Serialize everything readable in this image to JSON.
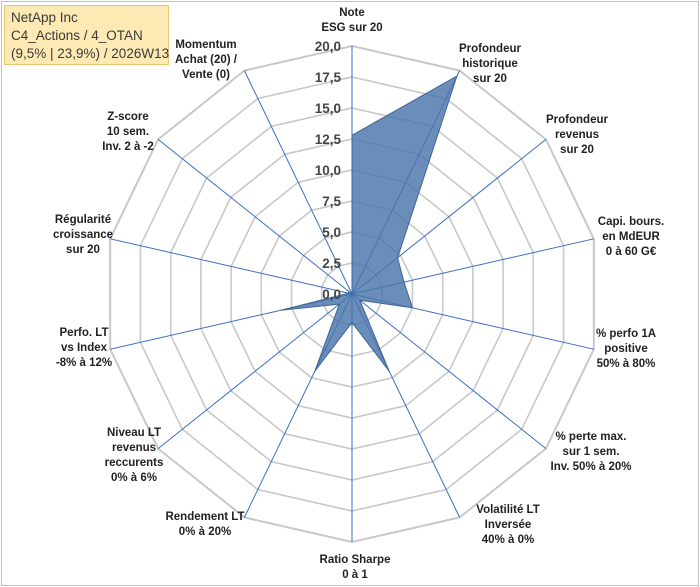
{
  "chart_data": {
    "type": "radar",
    "title_lines": [
      "NetApp Inc",
      "C4_Actions / 4_OTAN",
      "(9,5% | 23,9%) / 2026W13"
    ],
    "scale": {
      "min": 0,
      "max": 20,
      "step": 2.5
    },
    "ticks": [
      "0,0",
      "2,5",
      "5,0",
      "7,5",
      "10,0",
      "12,5",
      "15,0",
      "17,5",
      "20,0"
    ],
    "axes": [
      {
        "label": [
          "Note",
          "ESG sur 20"
        ],
        "value": 12.8
      },
      {
        "label": [
          "Profondeur",
          "historique",
          "sur 20"
        ],
        "value": 19.5
      },
      {
        "label": [
          "Profondeur",
          "revenus",
          "sur 20"
        ],
        "value": 4.7
      },
      {
        "label": [
          "Capi. bours.",
          "en MdEUR",
          "0 à 60 G€"
        ],
        "value": 4.3
      },
      {
        "label": [
          "% perfo 1A",
          "positive",
          "50% à 80%"
        ],
        "value": 5.0
      },
      {
        "label": [
          "% perte max.",
          "sur 1 sem.",
          "Inv. 50% à 20%"
        ],
        "value": 0.8
      },
      {
        "label": [
          "Volatilité LT",
          "Inversée",
          "40% à 0%"
        ],
        "value": 6.9
      },
      {
        "label": [
          "Ratio Sharpe",
          "0 à 1"
        ],
        "value": 2.3
      },
      {
        "label": [
          "Rendement LT",
          "0% à 20%"
        ],
        "value": 6.9
      },
      {
        "label": [
          "Niveau LT",
          "revenus",
          "reccurents",
          "0% à 6%"
        ],
        "value": 1.3
      },
      {
        "label": [
          "Perfo. LT",
          "vs Index",
          "-8% à 12%"
        ],
        "value": 5.9
      },
      {
        "label": [
          "Régularité",
          "croissance",
          "sur 20"
        ],
        "value": 0.3
      },
      {
        "label": [
          "Z-score",
          "10 sem.",
          "Inv. 2 à -2"
        ],
        "value": 0.3
      },
      {
        "label": [
          "Momentum",
          "Achat (20) /",
          "Vente (0)"
        ],
        "value": 0.0
      }
    ],
    "colors": {
      "fill": "#4a74ab",
      "stroke": "#3d6597",
      "grid": "#c8c8c8",
      "spoke": "#3b6fc2"
    }
  }
}
